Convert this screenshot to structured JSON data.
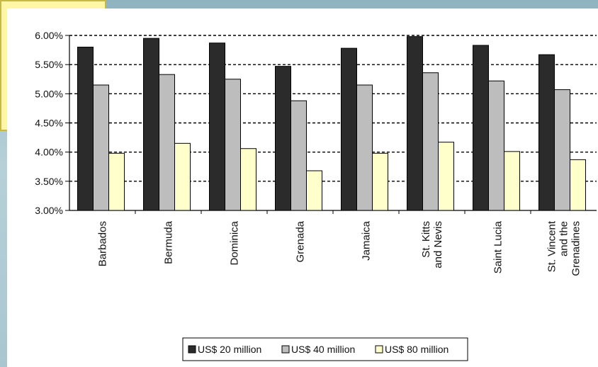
{
  "chart_data": {
    "type": "bar",
    "title": "",
    "xlabel": "",
    "ylabel": "",
    "ylim": [
      0.03,
      0.06
    ],
    "yticks": [
      "6.00%",
      "5.50%",
      "5.00%",
      "4.50%",
      "4.00%",
      "3.50%",
      "3.00%"
    ],
    "ytick_values": [
      0.06,
      0.055,
      0.05,
      0.045,
      0.04,
      0.035,
      0.03
    ],
    "grid": "dashed horizontal",
    "legend_position": "bottom",
    "categories": [
      [
        "Barbados"
      ],
      [
        "Bermuda"
      ],
      [
        "Dominica"
      ],
      [
        "Grenada"
      ],
      [
        "Jamaica"
      ],
      [
        "St. Kitts",
        "and Nevis"
      ],
      [
        "Saint Lucia"
      ],
      [
        "St. Vincent",
        "and the",
        "Grenadines"
      ]
    ],
    "series": [
      {
        "name": "US$ 20 million",
        "color": "#2b2b2b",
        "values": [
          0.058,
          0.0595,
          0.0587,
          0.0547,
          0.0578,
          0.0598,
          0.0583,
          0.0567
        ]
      },
      {
        "name": "US$ 40 million",
        "color": "#bdbdbd",
        "values": [
          0.0515,
          0.0533,
          0.0525,
          0.0488,
          0.0515,
          0.0536,
          0.0522,
          0.0507
        ]
      },
      {
        "name": "US$ 80 million",
        "color": "#ffffcc",
        "values": [
          0.0398,
          0.0415,
          0.0406,
          0.0368,
          0.0398,
          0.0417,
          0.0401,
          0.0387
        ]
      }
    ]
  }
}
